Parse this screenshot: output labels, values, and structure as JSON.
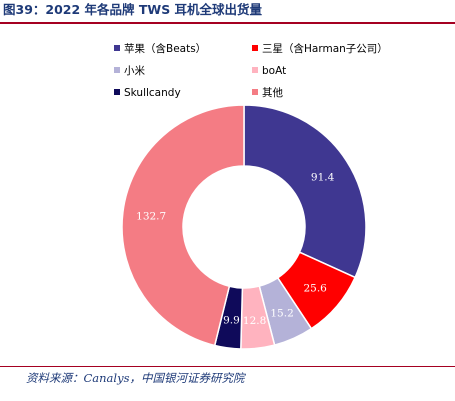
{
  "header": {
    "title": "图39：2022 年各品牌 TWS 耳机全球出货量"
  },
  "footer": {
    "source": "资料来源：Canalys，中国银河证券研究院"
  },
  "chart_data": {
    "type": "pie",
    "donut": true,
    "legend_position": "top",
    "categories": [
      "苹果（含Beats）",
      "三星（含Harman子公司）",
      "小米",
      "boAt",
      "Skullcandy",
      "其他"
    ],
    "values": [
      91.4,
      25.6,
      15.2,
      12.8,
      9.9,
      132.7
    ],
    "labels": [
      "91.4",
      "25.6",
      "15.2",
      "12.8",
      "9.9",
      "132.7"
    ],
    "colors": [
      "#3f3791",
      "#ff0000",
      "#b4b2d8",
      "#ffb3bf",
      "#0f0a5a",
      "#f47c84"
    ]
  }
}
